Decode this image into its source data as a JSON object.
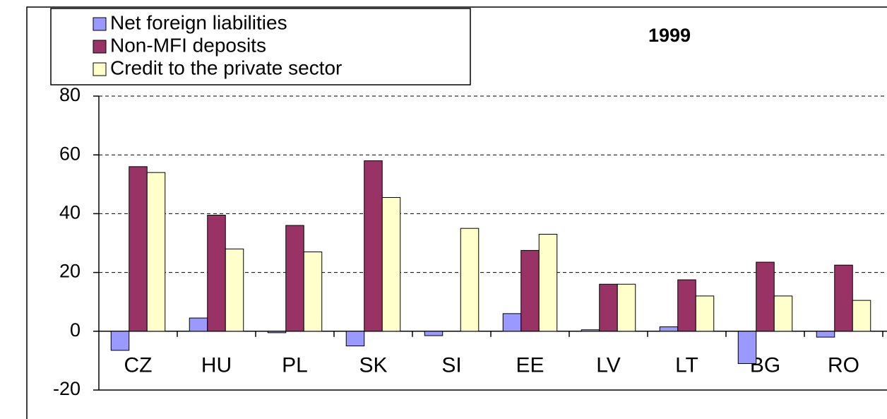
{
  "chart_data": {
    "type": "bar",
    "title": "1999",
    "categories": [
      "CZ",
      "HU",
      "PL",
      "SK",
      "SI",
      "EE",
      "LV",
      "LT",
      "BG",
      "RO"
    ],
    "series": [
      {
        "name": "Net foreign liabilities",
        "color": "#9999ff",
        "values": [
          -6.5,
          4.5,
          -0.5,
          -5,
          -1.5,
          6,
          0.5,
          1.5,
          -11,
          -2
        ]
      },
      {
        "name": "Non-MFI deposits",
        "color": "#993366",
        "values": [
          56,
          39.5,
          36,
          58,
          0,
          27.5,
          16,
          17.5,
          23.5,
          22.5
        ]
      },
      {
        "name": "Credit to the private sector",
        "color": "#ffffcc",
        "values": [
          54,
          28,
          27,
          45.5,
          35,
          33,
          16,
          12,
          12,
          10.5
        ]
      }
    ],
    "ylim": [
      -20,
      80
    ],
    "yticks": [
      -20,
      0,
      20,
      40,
      60,
      80
    ],
    "grid": true
  }
}
